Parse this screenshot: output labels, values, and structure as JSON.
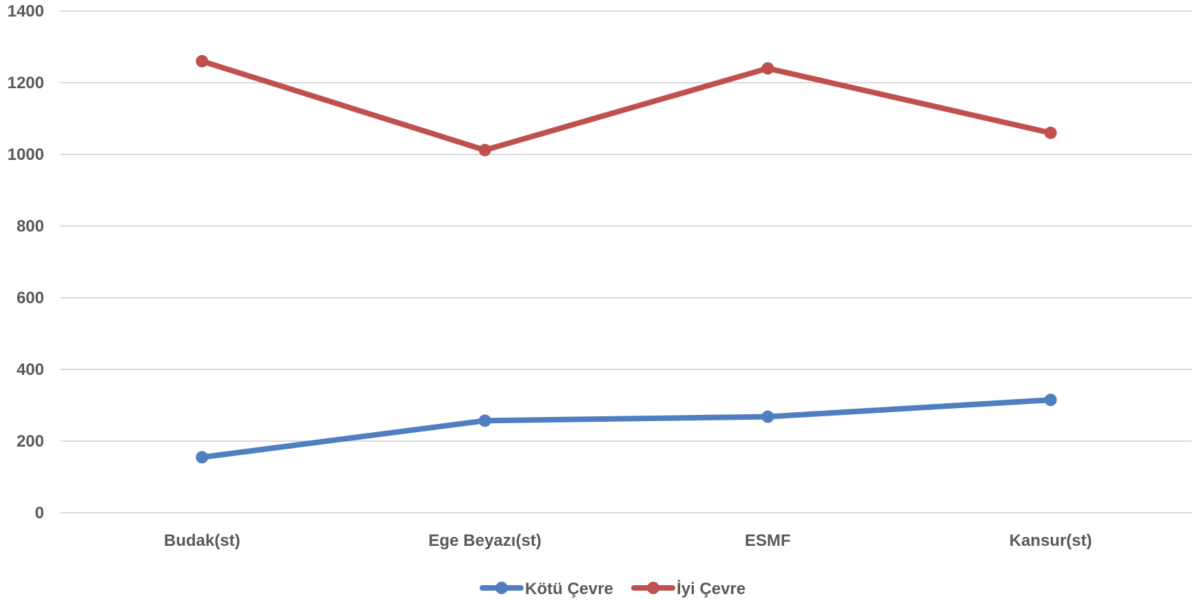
{
  "chart_data": {
    "type": "line",
    "categories": [
      "Budak(st)",
      "Ege Beyazı(st)",
      "ESMF",
      "Kansur(st)"
    ],
    "series": [
      {
        "name": "Kötü Çevre",
        "color": "#4F7EC1",
        "values": [
          155,
          257,
          268,
          315
        ]
      },
      {
        "name": "İyi Çevre",
        "color": "#C0504D",
        "values": [
          1260,
          1012,
          1240,
          1060
        ]
      }
    ],
    "yticks": [
      0,
      200,
      400,
      600,
      800,
      1000,
      1200,
      1400
    ],
    "ylim": [
      0,
      1400
    ],
    "grid": true,
    "legend": "bottom-center",
    "gridline_color": "#D9D9D9"
  }
}
